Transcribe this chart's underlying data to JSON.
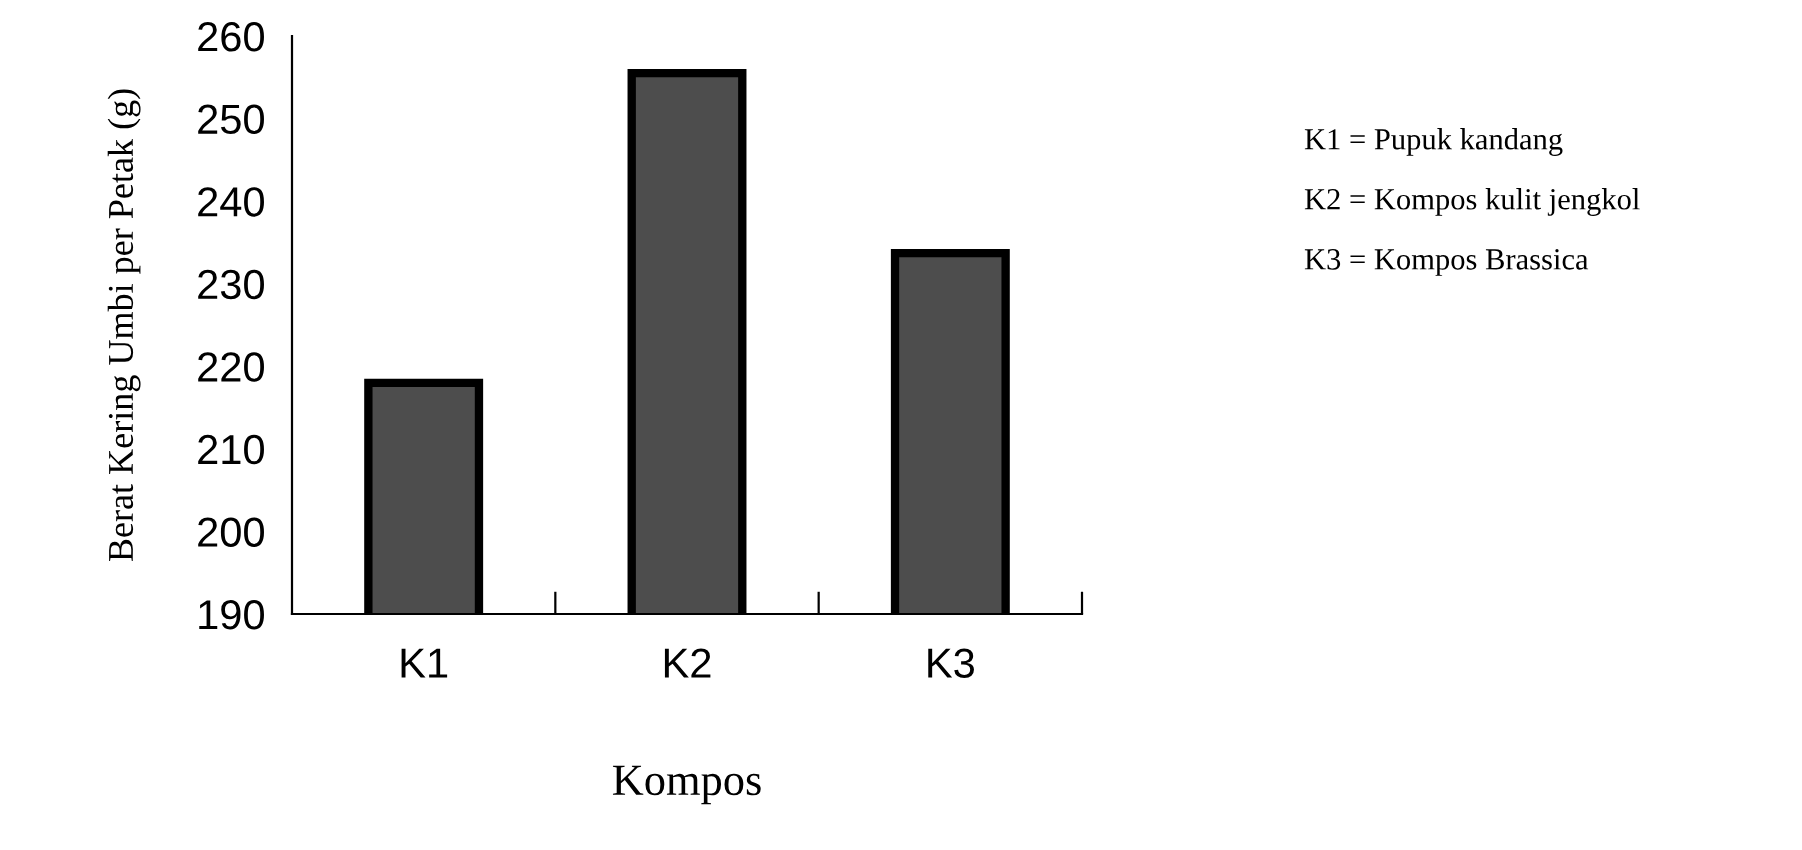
{
  "chart_data": {
    "type": "bar",
    "xlabel": "Kompos",
    "ylabel": "Berat Kering Umbi per Petak (g)",
    "categories": [
      "K1",
      "K2",
      "K3"
    ],
    "values": [
      218,
      255.5,
      233.7
    ],
    "color": "#4d4d4d",
    "ylim": [
      190,
      260
    ],
    "yticks": [
      190,
      200,
      210,
      220,
      230,
      240,
      250,
      260
    ],
    "grid": false,
    "annotations": [
      "K1 = Pupuk kandang",
      "K2 = Kompos kulit jengkol",
      "K3 = Kompos Brassica"
    ]
  }
}
